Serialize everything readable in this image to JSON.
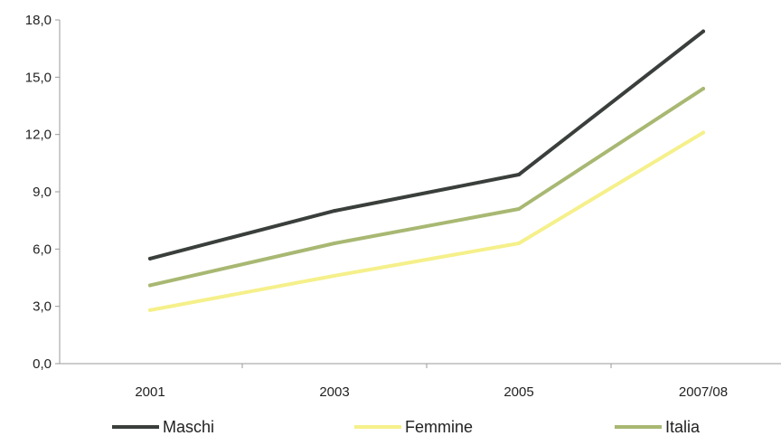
{
  "chart_data": {
    "type": "line",
    "title": "",
    "xlabel": "",
    "ylabel": "",
    "categories": [
      "2001",
      "2003",
      "2005",
      "2007/08"
    ],
    "ylim": [
      0,
      18
    ],
    "yticks": [
      0,
      3,
      6,
      9,
      12,
      15,
      18
    ],
    "ytick_labels": [
      "0,0",
      "3,0",
      "6,0",
      "9,0",
      "12,0",
      "15,0",
      "18,0"
    ],
    "grid": false,
    "legend_position": "bottom",
    "series": [
      {
        "name": "Maschi",
        "color": "#3a3f3c",
        "values": [
          5.5,
          8.0,
          9.9,
          17.4
        ]
      },
      {
        "name": "Femmine",
        "color": "#f5f08a",
        "values": [
          2.8,
          4.6,
          6.3,
          12.1
        ]
      },
      {
        "name": "Italia",
        "color": "#a8b872",
        "values": [
          4.1,
          6.3,
          8.1,
          14.4
        ]
      }
    ]
  }
}
